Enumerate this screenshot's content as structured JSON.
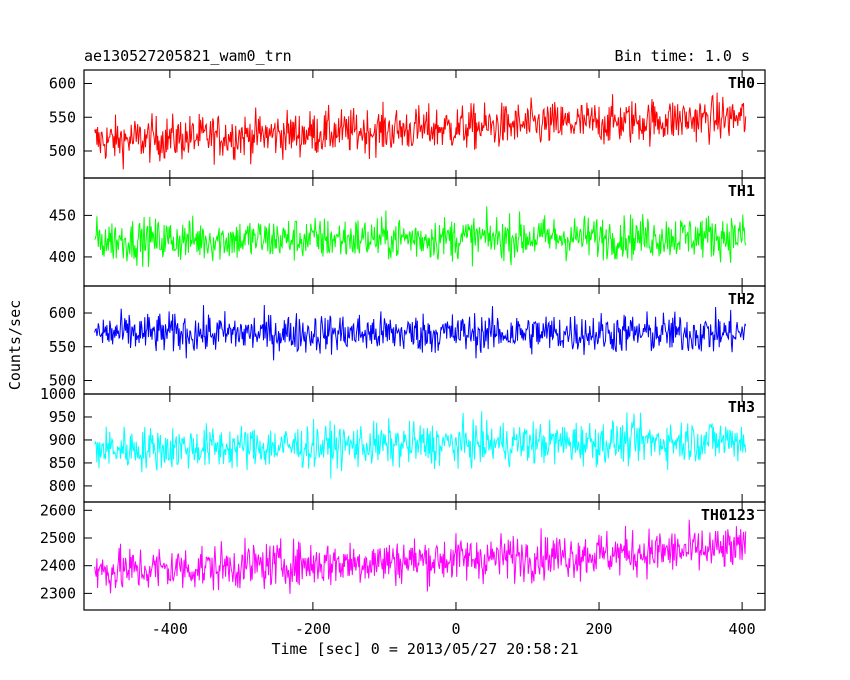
{
  "header": {
    "title": "ae130527205821_wam0_trn",
    "bin_time": "Bin time: 1.0 s"
  },
  "chart_data": {
    "type": "line",
    "title": "ae130527205821_wam0_trn",
    "xlabel": "Time [sec] 0 = 2013/05/27 20:58:21",
    "ylabel": "Counts/sec",
    "xlim": [
      -520,
      432
    ],
    "xticks": [
      -400,
      -200,
      0,
      200,
      400
    ],
    "x_start": -505,
    "x_end": 405,
    "x_step": 1,
    "panels": [
      {
        "name": "TH0",
        "color": "#ff0000",
        "ylim": [
          460,
          620
        ],
        "yticks": [
          500,
          550,
          600
        ],
        "start_mean": 515,
        "end_mean": 550,
        "noise": 28
      },
      {
        "name": "TH1",
        "color": "#00ff00",
        "ylim": [
          365,
          495
        ],
        "yticks": [
          400,
          450
        ],
        "start_mean": 420,
        "end_mean": 425,
        "noise": 22
      },
      {
        "name": "TH2",
        "color": "#0000ff",
        "ylim": [
          480,
          640
        ],
        "yticks": [
          500,
          550,
          600
        ],
        "start_mean": 570,
        "end_mean": 570,
        "noise": 25
      },
      {
        "name": "TH3",
        "color": "#00ffff",
        "ylim": [
          765,
          1000
        ],
        "yticks": [
          800,
          850,
          900,
          950,
          1000
        ],
        "start_mean": 880,
        "end_mean": 900,
        "noise": 40
      },
      {
        "name": "TH0123",
        "color": "#ff00ff",
        "ylim": [
          2240,
          2630
        ],
        "yticks": [
          2300,
          2400,
          2500,
          2600
        ],
        "start_mean": 2380,
        "end_mean": 2460,
        "noise": 70
      }
    ],
    "grid": false,
    "legend": "none"
  }
}
